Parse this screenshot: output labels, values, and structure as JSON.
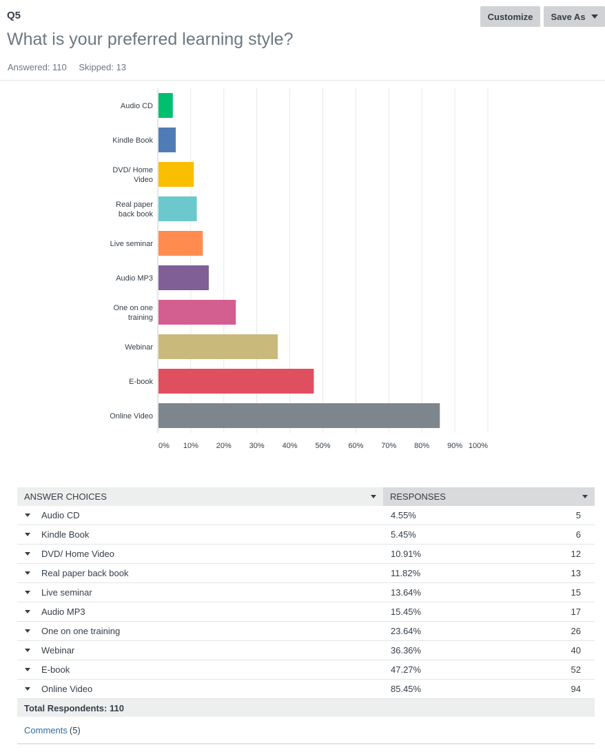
{
  "question": {
    "number": "Q5",
    "title": "What is your preferred learning style?",
    "answered": "Answered: 110",
    "skipped": "Skipped: 13"
  },
  "toolbar": {
    "customize_label": "Customize",
    "save_as_label": "Save As"
  },
  "chart_data": {
    "type": "bar",
    "orientation": "horizontal",
    "categories": [
      "Audio CD",
      "Kindle Book",
      "DVD/ Home Video",
      "Real paper back book",
      "Live seminar",
      "Audio MP3",
      "One on one training",
      "Webinar",
      "E-book",
      "Online Video"
    ],
    "category_label_lines": [
      [
        "Audio CD"
      ],
      [
        "Kindle Book"
      ],
      [
        "DVD/ Home",
        "Video"
      ],
      [
        "Real paper",
        "back book"
      ],
      [
        "Live seminar"
      ],
      [
        "Audio MP3"
      ],
      [
        "One on one",
        "training"
      ],
      [
        "Webinar"
      ],
      [
        "E-book"
      ],
      [
        "Online Video"
      ]
    ],
    "values": [
      4.55,
      5.45,
      10.91,
      11.82,
      13.64,
      15.45,
      23.64,
      36.36,
      47.27,
      85.45
    ],
    "colors": [
      "#00bf6f",
      "#507cb6",
      "#f9be00",
      "#6bc8cd",
      "#ff8b4f",
      "#7f5f96",
      "#d25f90",
      "#c9b97b",
      "#e04f5f",
      "#7d868c"
    ],
    "xticks": [
      "0%",
      "10%",
      "20%",
      "30%",
      "40%",
      "50%",
      "60%",
      "70%",
      "80%",
      "90%",
      "100%"
    ],
    "xlim": [
      0,
      100
    ],
    "grid": true
  },
  "table": {
    "headers": {
      "choices": "ANSWER CHOICES",
      "responses": "RESPONSES"
    },
    "rows": [
      {
        "choice": "Audio CD",
        "percent": "4.55%",
        "count": "5"
      },
      {
        "choice": "Kindle Book",
        "percent": "5.45%",
        "count": "6"
      },
      {
        "choice": "DVD/ Home Video",
        "percent": "10.91%",
        "count": "12"
      },
      {
        "choice": "Real paper back book",
        "percent": "11.82%",
        "count": "13"
      },
      {
        "choice": "Live seminar",
        "percent": "13.64%",
        "count": "15"
      },
      {
        "choice": "Audio MP3",
        "percent": "15.45%",
        "count": "17"
      },
      {
        "choice": "One on one training",
        "percent": "23.64%",
        "count": "26"
      },
      {
        "choice": "Webinar",
        "percent": "36.36%",
        "count": "40"
      },
      {
        "choice": "E-book",
        "percent": "47.27%",
        "count": "52"
      },
      {
        "choice": "Online Video",
        "percent": "85.45%",
        "count": "94"
      }
    ],
    "total": "Total Respondents: 110",
    "comments_link": "Comments",
    "comments_count": "(5)"
  }
}
